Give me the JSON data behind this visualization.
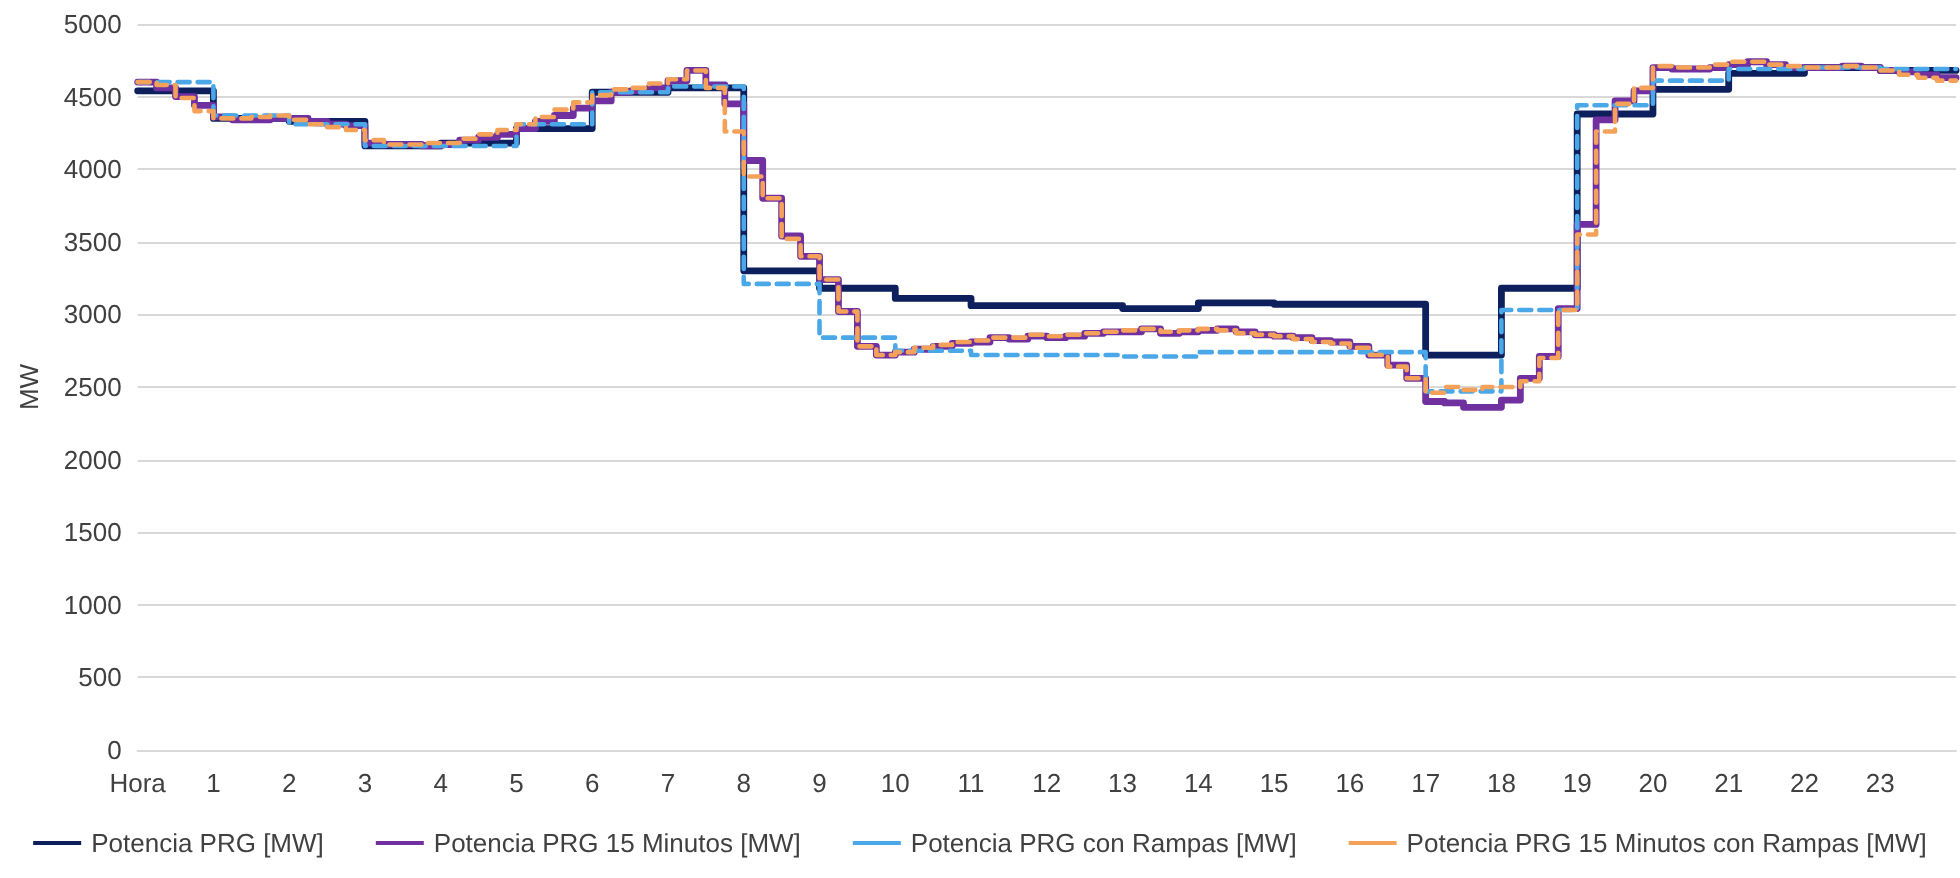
{
  "chart_data": {
    "type": "step",
    "ylabel": "MW",
    "xlim": [
      0,
      24
    ],
    "xticks": [
      {
        "value": 0,
        "label": "Hora"
      },
      1,
      2,
      3,
      4,
      5,
      6,
      7,
      8,
      9,
      10,
      11,
      12,
      13,
      14,
      15,
      16,
      17,
      18,
      19,
      20,
      21,
      22,
      23
    ],
    "ylim": [
      0,
      5000
    ],
    "yticks": [
      0,
      500,
      1000,
      1500,
      2000,
      2500,
      3000,
      3500,
      4000,
      4500,
      5000
    ],
    "grid": "y",
    "legend": "bottom",
    "marker": "none",
    "series": [
      {
        "name": "Potencia PRG [MW]",
        "color": "#0d1f5c",
        "line_style": "solid",
        "x": [
          0,
          1,
          2,
          3,
          4,
          5,
          6,
          7,
          8,
          9,
          10,
          11,
          12,
          13,
          14,
          15,
          16,
          17,
          18,
          19,
          20,
          21,
          22,
          23,
          24
        ],
        "values": [
          4540,
          4350,
          4330,
          4160,
          4180,
          4280,
          4530,
          4560,
          3300,
          3180,
          3110,
          3060,
          3060,
          3040,
          3080,
          3070,
          3070,
          2720,
          3180,
          4380,
          4550,
          4660,
          4700,
          4680,
          4680
        ]
      },
      {
        "name": "Potencia PRG 15 Minutos [MW]",
        "color": "#7030a0",
        "line_style": "solid",
        "x": [
          0,
          0.25,
          0.5,
          0.75,
          1,
          1.25,
          1.5,
          1.75,
          2,
          2.25,
          2.5,
          2.75,
          3,
          3.25,
          3.5,
          3.75,
          4,
          4.25,
          4.5,
          4.75,
          5,
          5.25,
          5.5,
          5.75,
          6,
          6.25,
          6.5,
          6.75,
          7,
          7.25,
          7.5,
          7.75,
          8,
          8.25,
          8.5,
          8.75,
          9,
          9.25,
          9.5,
          9.75,
          10,
          10.25,
          10.5,
          10.75,
          11,
          11.25,
          11.5,
          11.75,
          12,
          12.25,
          12.5,
          12.75,
          13,
          13.25,
          13.5,
          13.75,
          14,
          14.25,
          14.5,
          14.75,
          15,
          15.25,
          15.5,
          15.75,
          16,
          16.25,
          16.5,
          16.75,
          17,
          17.25,
          17.5,
          17.75,
          18,
          18.25,
          18.5,
          18.75,
          19,
          19.25,
          19.5,
          19.75,
          20,
          20.25,
          20.5,
          20.75,
          21,
          21.25,
          21.5,
          21.75,
          22,
          22.25,
          22.5,
          22.75,
          23,
          23.25,
          23.5,
          23.75,
          24
        ],
        "values": [
          4600,
          4560,
          4500,
          4440,
          4360,
          4340,
          4340,
          4350,
          4350,
          4330,
          4310,
          4300,
          4180,
          4170,
          4170,
          4160,
          4170,
          4200,
          4220,
          4240,
          4280,
          4330,
          4370,
          4420,
          4470,
          4530,
          4540,
          4560,
          4610,
          4680,
          4580,
          4450,
          4060,
          3800,
          3540,
          3400,
          3240,
          3020,
          2780,
          2720,
          2740,
          2760,
          2780,
          2800,
          2810,
          2840,
          2830,
          2850,
          2840,
          2850,
          2870,
          2880,
          2880,
          2900,
          2870,
          2880,
          2890,
          2900,
          2880,
          2860,
          2850,
          2840,
          2820,
          2810,
          2780,
          2720,
          2650,
          2560,
          2400,
          2390,
          2360,
          2360,
          2410,
          2560,
          2710,
          3040,
          3620,
          4340,
          4470,
          4540,
          4700,
          4690,
          4690,
          4700,
          4720,
          4740,
          4720,
          4700,
          4700,
          4700,
          4710,
          4700,
          4680,
          4670,
          4650,
          4630,
          4630
        ]
      },
      {
        "name": "Potencia PRG con Rampas [MW]",
        "color": "#4aa8e8",
        "line_style": "dashed",
        "x": [
          0,
          1,
          2,
          3,
          4,
          5,
          6,
          7,
          8,
          9,
          10,
          11,
          12,
          13,
          14,
          15,
          16,
          17,
          18,
          19,
          20,
          21,
          22,
          23,
          24
        ],
        "values": [
          4600,
          4370,
          4310,
          4160,
          4160,
          4310,
          4530,
          4570,
          3210,
          2840,
          2750,
          2720,
          2720,
          2710,
          2740,
          2740,
          2740,
          2470,
          3030,
          4440,
          4610,
          4690,
          4700,
          4690,
          4690
        ]
      },
      {
        "name": "Potencia PRG 15 Minutos con Rampas [MW]",
        "color": "#f4a25a",
        "line_style": "dashed",
        "x": [
          0,
          0.25,
          0.5,
          0.75,
          1,
          1.25,
          1.5,
          1.75,
          2,
          2.25,
          2.5,
          2.75,
          3,
          3.25,
          3.5,
          3.75,
          4,
          4.25,
          4.5,
          4.75,
          5,
          5.25,
          5.5,
          5.75,
          6,
          6.25,
          6.5,
          6.75,
          7,
          7.25,
          7.5,
          7.75,
          8,
          8.25,
          8.5,
          8.75,
          9,
          9.25,
          9.5,
          9.75,
          10,
          10.25,
          10.5,
          10.75,
          11,
          11.25,
          11.5,
          11.75,
          12,
          12.25,
          12.5,
          12.75,
          13,
          13.25,
          13.5,
          13.75,
          14,
          14.25,
          14.5,
          14.75,
          15,
          15.25,
          15.5,
          15.75,
          16,
          16.25,
          16.5,
          16.75,
          17,
          17.25,
          17.5,
          17.75,
          18,
          18.25,
          18.5,
          18.75,
          19,
          19.25,
          19.5,
          19.75,
          20,
          20.25,
          20.5,
          20.75,
          21,
          21.25,
          21.5,
          21.75,
          22,
          22.25,
          22.5,
          22.75,
          23,
          23.25,
          23.5,
          23.75,
          24
        ],
        "values": [
          4600,
          4580,
          4490,
          4400,
          4350,
          4350,
          4360,
          4370,
          4340,
          4310,
          4290,
          4270,
          4200,
          4170,
          4170,
          4180,
          4180,
          4210,
          4240,
          4270,
          4310,
          4360,
          4410,
          4460,
          4510,
          4550,
          4560,
          4590,
          4620,
          4680,
          4560,
          4260,
          3950,
          3800,
          3520,
          3400,
          3240,
          3020,
          2780,
          2720,
          2740,
          2770,
          2790,
          2810,
          2820,
          2840,
          2840,
          2860,
          2850,
          2860,
          2870,
          2880,
          2890,
          2900,
          2880,
          2890,
          2900,
          2890,
          2870,
          2860,
          2850,
          2830,
          2810,
          2800,
          2770,
          2720,
          2640,
          2560,
          2460,
          2500,
          2480,
          2500,
          2500,
          2540,
          2700,
          3030,
          3550,
          4260,
          4450,
          4560,
          4710,
          4700,
          4700,
          4720,
          4740,
          4740,
          4720,
          4710,
          4700,
          4700,
          4710,
          4700,
          4680,
          4650,
          4630,
          4610,
          4610
        ]
      }
    ]
  }
}
